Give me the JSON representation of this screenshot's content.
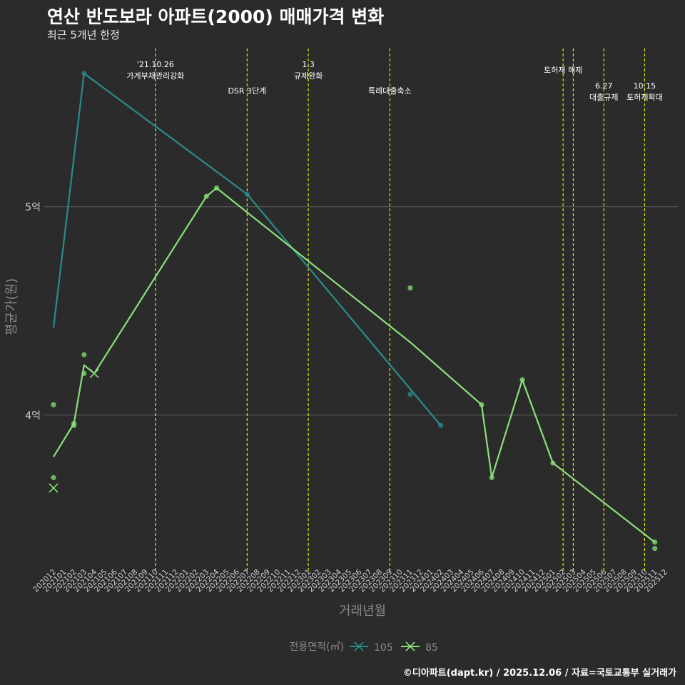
{
  "chart_data": {
    "type": "line",
    "title": "연산 반도보라 아파트(2000) 매매가격 변화",
    "subtitle": "최근 5개년 한정",
    "xlabel": "거래년월",
    "ylabel": "평균가(원)",
    "caption": "©디아파트(dapt.kr) / 2025.12.06 / 자료=국토교통부 실거래가",
    "categories": [
      "202012",
      "202101",
      "202102",
      "202103",
      "202104",
      "202105",
      "202106",
      "202107",
      "202108",
      "202109",
      "202110",
      "202111",
      "202112",
      "202201",
      "202202",
      "202203",
      "202204",
      "202205",
      "202206",
      "202207",
      "202208",
      "202209",
      "202210",
      "202211",
      "202212",
      "202301",
      "202302",
      "202303",
      "202304",
      "202305",
      "202306",
      "202307",
      "202308",
      "202309",
      "202310",
      "202311",
      "202312",
      "202401",
      "202402",
      "202403",
      "202404",
      "202405",
      "202406",
      "202407",
      "202408",
      "202409",
      "202410",
      "202411",
      "202412",
      "202501",
      "202502",
      "202503",
      "202504",
      "202505",
      "202506",
      "202507",
      "202508",
      "202509",
      "202510",
      "202511",
      "202512"
    ],
    "ylim": [
      3.28,
      5.78
    ],
    "y_ticks": [
      {
        "value": 4,
        "label": "4억"
      },
      {
        "value": 5,
        "label": "5억"
      }
    ],
    "legend": {
      "title": "전용면적(㎡)",
      "position": "bottom"
    },
    "series": [
      {
        "name": "105",
        "color": "#2a8c8a",
        "line": [
          [
            "202012",
            4.42
          ],
          [
            "202103",
            5.64
          ],
          [
            "202207",
            5.06
          ],
          [
            "202402",
            3.95
          ]
        ],
        "points": [
          [
            "202103",
            5.64
          ],
          [
            "202207",
            5.06
          ],
          [
            "202311",
            4.1
          ],
          [
            "202402",
            3.95
          ]
        ],
        "cross": []
      },
      {
        "name": "85",
        "color": "#8ae07a",
        "line": [
          [
            "202012",
            3.8
          ],
          [
            "202102",
            3.96
          ],
          [
            "202103",
            4.24
          ],
          [
            "202104",
            4.2
          ],
          [
            "202203",
            5.05
          ],
          [
            "202204",
            5.09
          ],
          [
            "202311",
            4.35
          ],
          [
            "202406",
            4.05
          ],
          [
            "202407",
            3.7
          ],
          [
            "202410",
            4.17
          ],
          [
            "202501",
            3.77
          ],
          [
            "202511",
            3.39
          ]
        ],
        "points": [
          [
            "202012",
            4.05
          ],
          [
            "202012",
            3.7
          ],
          [
            "202102",
            3.95
          ],
          [
            "202102",
            3.96
          ],
          [
            "202103",
            4.29
          ],
          [
            "202103",
            4.2
          ],
          [
            "202203",
            5.05
          ],
          [
            "202204",
            5.09
          ],
          [
            "202311",
            4.61
          ],
          [
            "202406",
            4.05
          ],
          [
            "202407",
            3.7
          ],
          [
            "202410",
            4.17
          ],
          [
            "202501",
            3.77
          ],
          [
            "202511",
            3.39
          ],
          [
            "202511",
            3.36
          ]
        ],
        "cross": [
          [
            "202012",
            3.65
          ],
          [
            "202104",
            4.2
          ]
        ]
      }
    ],
    "events": [
      {
        "x": "202110",
        "lines": [
          "'21.10.26",
          "가계부채관리강화"
        ],
        "row": 0
      },
      {
        "x": "202207",
        "lines": [
          "DSR 3단계"
        ],
        "row": 1
      },
      {
        "x": "202301",
        "lines": [
          "1.3",
          "규제완화"
        ],
        "row": 0
      },
      {
        "x": "202309",
        "lines": [
          "특례대출축소"
        ],
        "row": 1
      },
      {
        "x": "202502",
        "lines": [
          "토허제 해제"
        ],
        "row": 0
      },
      {
        "x": "202503",
        "lines": [],
        "row": 0
      },
      {
        "x": "202506",
        "lines": [
          "6.27",
          "대출규제"
        ],
        "row": 1
      },
      {
        "x": "202510",
        "lines": [
          "10.15",
          "토허제확대"
        ],
        "row": 1
      }
    ],
    "grid": true
  }
}
